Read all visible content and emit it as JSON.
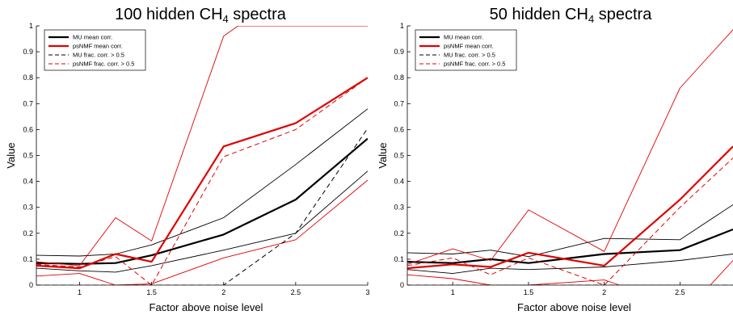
{
  "chart_data": [
    {
      "type": "line",
      "title": "100 hidden CH",
      "title_sub": "4",
      "title_tail": " spectra",
      "xlabel": "Factor above noise level",
      "ylabel": "Value",
      "xlim": [
        0.7,
        3
      ],
      "ylim": [
        0,
        1
      ],
      "xticks": [
        "1",
        "1.5",
        "2",
        "2.5",
        "3"
      ],
      "yticks": [
        "0",
        "0.1",
        "0.2",
        "0.3",
        "0.4",
        "0.5",
        "0.6",
        "0.7",
        "0.8",
        "0.9",
        "1"
      ],
      "grid": false,
      "legend_position": "top-left",
      "legend": [
        {
          "label": "MU mean corr.",
          "color": "#000000",
          "dash": false,
          "width": 2.2
        },
        {
          "label": "psNMF mean corr.",
          "color": "#e00000",
          "dash": false,
          "width": 2.2
        },
        {
          "label": "MU frac. corr. > 0.5",
          "color": "#000000",
          "dash": true,
          "width": 1
        },
        {
          "label": "psNMF frac. corr. > 0.5",
          "color": "#e00000",
          "dash": true,
          "width": 1
        }
      ],
      "series": [
        {
          "name": "MU mean corr.",
          "color": "#000000",
          "dash": false,
          "width": 2.2,
          "x": [
            0.7,
            1.0,
            1.25,
            1.5,
            2.0,
            2.5,
            3.0
          ],
          "y": [
            0.085,
            0.082,
            0.085,
            0.115,
            0.195,
            0.33,
            0.565
          ]
        },
        {
          "color": "#000000",
          "dash": false,
          "width": 0.9,
          "x": [
            0.7,
            1.0,
            1.25,
            1.5,
            2.0,
            2.5,
            3.0
          ],
          "y": [
            0.115,
            0.112,
            0.12,
            0.155,
            0.26,
            0.465,
            0.68
          ]
        },
        {
          "color": "#000000",
          "dash": false,
          "width": 0.9,
          "x": [
            0.7,
            1.0,
            1.25,
            1.5,
            2.0,
            2.5,
            3.0
          ],
          "y": [
            0.065,
            0.055,
            0.05,
            0.075,
            0.135,
            0.2,
            0.44
          ]
        },
        {
          "name": "psNMF mean corr.",
          "color": "#e00000",
          "dash": false,
          "width": 2.2,
          "x": [
            0.7,
            1.0,
            1.25,
            1.5,
            2.0,
            2.5,
            3.0
          ],
          "y": [
            0.075,
            0.065,
            0.12,
            0.09,
            0.535,
            0.625,
            0.8
          ]
        },
        {
          "color": "#e00000",
          "dash": false,
          "width": 0.9,
          "x": [
            0.7,
            1.0,
            1.25,
            1.5,
            2.0,
            2.1,
            3.0
          ],
          "y": [
            0.09,
            0.075,
            0.26,
            0.17,
            0.96,
            1.0,
            1.0
          ]
        },
        {
          "color": "#e00000",
          "dash": false,
          "width": 0.9,
          "x": [
            0.7,
            1.0,
            1.25,
            1.5,
            2.0,
            2.5,
            3.0
          ],
          "y": [
            0.035,
            0.045,
            0.0,
            0.005,
            0.105,
            0.175,
            0.405
          ]
        },
        {
          "name": "MU frac. corr. > 0.5",
          "color": "#000000",
          "dash": true,
          "width": 1,
          "x": [
            0.7,
            1.0,
            1.5,
            2.0,
            2.5,
            3.0
          ],
          "y": [
            0.0,
            0.0,
            0.0,
            0.0,
            0.2,
            0.605
          ]
        },
        {
          "name": "psNMF frac. corr. > 0.5",
          "color": "#e00000",
          "dash": true,
          "width": 1,
          "x": [
            0.7,
            1.0,
            1.25,
            1.5,
            2.0,
            2.5,
            3.0
          ],
          "y": [
            0.08,
            0.07,
            0.11,
            0.0,
            0.495,
            0.6,
            0.8
          ]
        }
      ]
    },
    {
      "type": "line",
      "title": "50 hidden CH",
      "title_sub": "4",
      "title_tail": " spectra",
      "xlabel": "Factor above noise level",
      "ylabel": "Value",
      "xlim": [
        0.7,
        2.85
      ],
      "ylim": [
        0,
        1
      ],
      "xticks": [
        "1",
        "1.5",
        "2",
        "2.5"
      ],
      "yticks": [
        "0",
        "0.1",
        "0.2",
        "0.3",
        "0.4",
        "0.5",
        "0.6",
        "0.7",
        "0.8",
        "0.9",
        "1"
      ],
      "grid": false,
      "legend_position": "top-left",
      "legend": [
        {
          "label": "MU mean corr.",
          "color": "#000000",
          "dash": false,
          "width": 2.2
        },
        {
          "label": "psNMF mean corr.",
          "color": "#e00000",
          "dash": false,
          "width": 2.2
        },
        {
          "label": "MU frac. corr. > 0.5",
          "color": "#000000",
          "dash": true,
          "width": 1
        },
        {
          "label": "psNMF frac. corr. > 0.5",
          "color": "#e00000",
          "dash": true,
          "width": 1
        }
      ],
      "series": [
        {
          "name": "MU mean corr.",
          "color": "#000000",
          "dash": false,
          "width": 2.2,
          "x": [
            0.7,
            1.0,
            1.25,
            1.5,
            2.0,
            2.5,
            2.85
          ],
          "y": [
            0.09,
            0.085,
            0.1,
            0.085,
            0.12,
            0.135,
            0.215
          ]
        },
        {
          "color": "#000000",
          "dash": false,
          "width": 0.9,
          "x": [
            0.7,
            1.0,
            1.25,
            1.5,
            2.0,
            2.5,
            2.85
          ],
          "y": [
            0.125,
            0.12,
            0.135,
            0.11,
            0.18,
            0.175,
            0.31
          ]
        },
        {
          "color": "#000000",
          "dash": false,
          "width": 0.9,
          "x": [
            0.7,
            1.0,
            1.25,
            1.5,
            2.0,
            2.5,
            2.85
          ],
          "y": [
            0.06,
            0.045,
            0.065,
            0.06,
            0.07,
            0.095,
            0.12
          ]
        },
        {
          "name": "psNMF mean corr.",
          "color": "#e00000",
          "dash": false,
          "width": 2.2,
          "x": [
            0.7,
            1.0,
            1.25,
            1.5,
            2.0,
            2.5,
            2.85
          ],
          "y": [
            0.065,
            0.08,
            0.07,
            0.125,
            0.075,
            0.33,
            0.535
          ]
        },
        {
          "color": "#e00000",
          "dash": false,
          "width": 0.9,
          "x": [
            0.7,
            1.0,
            1.25,
            1.5,
            2.0,
            2.5,
            2.85
          ],
          "y": [
            0.08,
            0.14,
            0.095,
            0.29,
            0.13,
            0.76,
            0.985
          ]
        },
        {
          "color": "#e00000",
          "dash": false,
          "width": 0.9,
          "x": [
            0.7,
            1.0,
            1.25,
            1.5,
            2.0,
            2.1,
            2.7,
            2.85
          ],
          "y": [
            0.04,
            0.025,
            0.0,
            0.0,
            0.02,
            0.0,
            0.0,
            0.095
          ]
        },
        {
          "name": "MU frac. corr. > 0.5",
          "color": "#000000",
          "dash": true,
          "width": 1,
          "x": [
            0.7,
            2.85
          ],
          "y": [
            0.0,
            0.0
          ]
        },
        {
          "name": "psNMF frac. corr. > 0.5",
          "color": "#e00000",
          "dash": true,
          "width": 1,
          "x": [
            0.7,
            1.0,
            1.25,
            1.5,
            2.0,
            2.5,
            2.85
          ],
          "y": [
            0.075,
            0.105,
            0.04,
            0.105,
            0.0,
            0.3,
            0.49
          ]
        }
      ]
    }
  ]
}
